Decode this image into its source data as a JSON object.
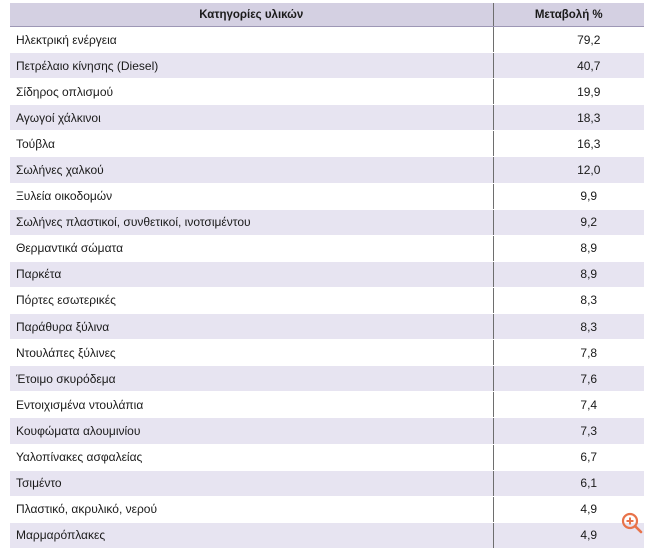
{
  "table": {
    "headers": [
      "Κατηγορίες υλικών",
      "Μεταβολή %"
    ],
    "rows": [
      {
        "category": "Ηλεκτρική ενέργεια",
        "change": "79,2"
      },
      {
        "category": "Πετρέλαιο κίνησης (Diesel)",
        "change": "40,7"
      },
      {
        "category": "Σίδηρος οπλισμού",
        "change": "19,9"
      },
      {
        "category": "Αγωγοί χάλκινοι",
        "change": "18,3"
      },
      {
        "category": "Τούβλα",
        "change": "16,3"
      },
      {
        "category": "Σωλήνες χαλκού",
        "change": "12,0"
      },
      {
        "category": "Ξυλεία οικοδομών",
        "change": "9,9"
      },
      {
        "category": "Σωλήνες πλαστικοί, συνθετικοί, ινοτσιμέντου",
        "change": "9,2"
      },
      {
        "category": "Θερμαντικά σώματα",
        "change": "8,9"
      },
      {
        "category": "Παρκέτα",
        "change": "8,9"
      },
      {
        "category": "Πόρτες εσωτερικές",
        "change": "8,3"
      },
      {
        "category": "Παράθυρα ξύλινα",
        "change": "8,3"
      },
      {
        "category": "Ντουλάπες ξύλινες",
        "change": "7,8"
      },
      {
        "category": "Έτοιμο σκυρόδεμα",
        "change": "7,6"
      },
      {
        "category": "Εντοιχισμένα ντουλάπια",
        "change": "7,4"
      },
      {
        "category": "Κουφώματα αλουμινίου",
        "change": "7,3"
      },
      {
        "category": "Υαλοπίνακες ασφαλείας",
        "change": "6,7"
      },
      {
        "category": "Τσιμέντο",
        "change": "6,1"
      },
      {
        "category": "Πλαστικό, ακρυλικό, νερού",
        "change": "4,9"
      },
      {
        "category": "Μαρμαρόπλακες",
        "change": "4,9"
      }
    ]
  },
  "zoom_control": {
    "icon": "zoom-in-icon",
    "color": "#e8734a"
  }
}
